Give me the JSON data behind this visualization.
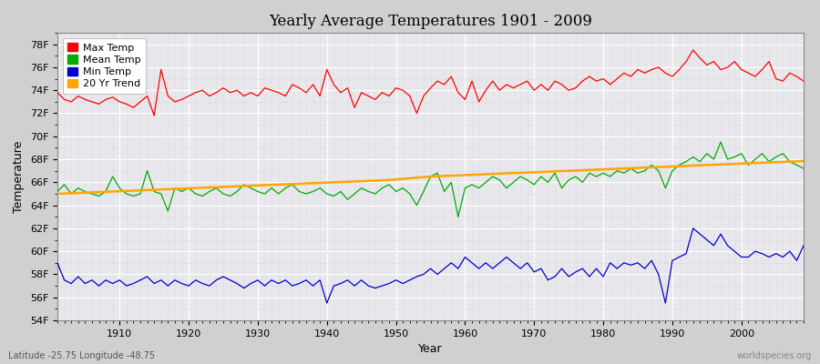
{
  "title": "Yearly Average Temperatures 1901 - 2009",
  "xlabel": "Year",
  "ylabel": "Temperature",
  "bottom_left": "Latitude -25.75 Longitude -48.75",
  "bottom_right": "worldspecies.org",
  "ylim": [
    54,
    79
  ],
  "xlim": [
    1901,
    2009
  ],
  "yticks": [
    54,
    56,
    58,
    60,
    62,
    64,
    66,
    68,
    70,
    72,
    74,
    76,
    78
  ],
  "ytick_labels": [
    "54F",
    "56F",
    "58F",
    "60F",
    "62F",
    "64F",
    "66F",
    "68F",
    "70F",
    "72F",
    "74F",
    "76F",
    "78F"
  ],
  "xticks": [
    1910,
    1920,
    1930,
    1940,
    1950,
    1960,
    1970,
    1980,
    1990,
    2000
  ],
  "fig_bg_color": "#d0d0d0",
  "plot_bg_color": "#e8e8ec",
  "grid_major_color": "#ffffff",
  "grid_minor_color": "#d8d8e0",
  "max_color": "#ff0000",
  "mean_color": "#00aa00",
  "min_color": "#0000cc",
  "trend_color": "#ffa500",
  "legend_labels": [
    "Max Temp",
    "Mean Temp",
    "Min Temp",
    "20 Yr Trend"
  ],
  "max_temp": [
    73.8,
    73.2,
    73.0,
    73.5,
    73.2,
    73.0,
    72.8,
    73.2,
    73.4,
    73.0,
    72.8,
    72.5,
    73.0,
    73.5,
    71.8,
    75.8,
    73.5,
    73.0,
    73.2,
    73.5,
    73.8,
    74.0,
    73.5,
    73.8,
    74.2,
    73.8,
    74.0,
    73.5,
    73.8,
    73.5,
    74.2,
    74.0,
    73.8,
    73.5,
    74.5,
    74.2,
    73.8,
    74.5,
    73.5,
    75.8,
    74.5,
    73.8,
    74.2,
    72.5,
    73.8,
    73.5,
    73.2,
    73.8,
    73.5,
    74.2,
    74.0,
    73.5,
    72.0,
    73.5,
    74.2,
    74.8,
    74.5,
    75.2,
    73.8,
    73.2,
    74.8,
    73.0,
    74.0,
    74.8,
    74.0,
    74.5,
    74.2,
    74.5,
    74.8,
    74.0,
    74.5,
    74.0,
    74.8,
    74.5,
    74.0,
    74.2,
    74.8,
    75.2,
    74.8,
    75.0,
    74.5,
    75.0,
    75.5,
    75.2,
    75.8,
    75.5,
    75.8,
    76.0,
    75.5,
    75.2,
    75.8,
    76.5,
    77.5,
    76.8,
    76.2,
    76.5,
    75.8,
    76.0,
    76.5,
    75.8,
    75.5,
    75.2,
    75.8,
    76.5,
    75.0,
    74.8,
    75.5,
    75.2,
    74.8
  ],
  "mean_temp": [
    65.2,
    65.8,
    65.0,
    65.5,
    65.2,
    65.0,
    64.8,
    65.2,
    66.5,
    65.5,
    65.0,
    64.8,
    65.0,
    67.0,
    65.2,
    65.0,
    63.5,
    65.5,
    65.2,
    65.5,
    65.0,
    64.8,
    65.2,
    65.5,
    65.0,
    64.8,
    65.2,
    65.8,
    65.5,
    65.2,
    65.0,
    65.5,
    65.0,
    65.5,
    65.8,
    65.2,
    65.0,
    65.2,
    65.5,
    65.0,
    64.8,
    65.2,
    64.5,
    65.0,
    65.5,
    65.2,
    65.0,
    65.5,
    65.8,
    65.2,
    65.5,
    65.0,
    64.0,
    65.2,
    66.5,
    66.8,
    65.2,
    66.0,
    63.0,
    65.5,
    65.8,
    65.5,
    66.0,
    66.5,
    66.2,
    65.5,
    66.0,
    66.5,
    66.2,
    65.8,
    66.5,
    66.0,
    66.8,
    65.5,
    66.2,
    66.5,
    66.0,
    66.8,
    66.5,
    66.8,
    66.5,
    67.0,
    66.8,
    67.2,
    66.8,
    67.0,
    67.5,
    67.0,
    65.5,
    67.0,
    67.5,
    67.8,
    68.2,
    67.8,
    68.5,
    68.0,
    69.5,
    68.0,
    68.2,
    68.5,
    67.5,
    68.0,
    68.5,
    67.8,
    68.2,
    68.5,
    67.8,
    67.5,
    67.2
  ],
  "min_temp": [
    59.0,
    57.5,
    57.2,
    57.8,
    57.2,
    57.5,
    57.0,
    57.5,
    57.2,
    57.5,
    57.0,
    57.2,
    57.5,
    57.8,
    57.2,
    57.5,
    57.0,
    57.5,
    57.2,
    57.0,
    57.5,
    57.2,
    57.0,
    57.5,
    57.8,
    57.5,
    57.2,
    56.8,
    57.2,
    57.5,
    57.0,
    57.5,
    57.2,
    57.5,
    57.0,
    57.2,
    57.5,
    57.0,
    57.5,
    55.5,
    57.0,
    57.2,
    57.5,
    57.0,
    57.5,
    57.0,
    56.8,
    57.0,
    57.2,
    57.5,
    57.2,
    57.5,
    57.8,
    58.0,
    58.5,
    58.0,
    58.5,
    59.0,
    58.5,
    59.5,
    59.0,
    58.5,
    59.0,
    58.5,
    59.0,
    59.5,
    59.0,
    58.5,
    59.0,
    58.2,
    58.5,
    57.5,
    57.8,
    58.5,
    57.8,
    58.2,
    58.5,
    57.8,
    58.5,
    57.8,
    59.0,
    58.5,
    59.0,
    58.8,
    59.0,
    58.5,
    59.2,
    58.0,
    55.5,
    59.2,
    59.5,
    59.8,
    62.0,
    61.5,
    61.0,
    60.5,
    61.5,
    60.5,
    60.0,
    59.5,
    59.5,
    60.0,
    59.8,
    59.5,
    59.8,
    59.5,
    60.0,
    59.2,
    60.5
  ],
  "trend_years": [
    1901,
    1903,
    1905,
    1907,
    1909,
    1911,
    1913,
    1915,
    1917,
    1919,
    1921,
    1923,
    1925,
    1927,
    1929,
    1931,
    1933,
    1935,
    1937,
    1939,
    1941,
    1943,
    1945,
    1947,
    1949,
    1951,
    1953,
    1955,
    1957,
    1959,
    1961,
    1963,
    1965,
    1967,
    1969,
    1971,
    1973,
    1975,
    1977,
    1979,
    1981,
    1983,
    1985,
    1987,
    1989,
    1991,
    1993,
    1995,
    1997,
    1999,
    2001,
    2003,
    2005,
    2007,
    2009
  ],
  "trend_vals": [
    65.0,
    65.05,
    65.1,
    65.15,
    65.2,
    65.25,
    65.3,
    65.35,
    65.4,
    65.45,
    65.5,
    65.55,
    65.6,
    65.65,
    65.7,
    65.75,
    65.8,
    65.85,
    65.9,
    65.95,
    66.0,
    66.05,
    66.1,
    66.15,
    66.2,
    66.3,
    66.4,
    66.5,
    66.55,
    66.6,
    66.65,
    66.7,
    66.75,
    66.8,
    66.85,
    66.9,
    66.95,
    67.0,
    67.05,
    67.1,
    67.15,
    67.2,
    67.25,
    67.3,
    67.35,
    67.4,
    67.45,
    67.5,
    67.55,
    67.6,
    67.65,
    67.7,
    67.75,
    67.8,
    67.85
  ]
}
